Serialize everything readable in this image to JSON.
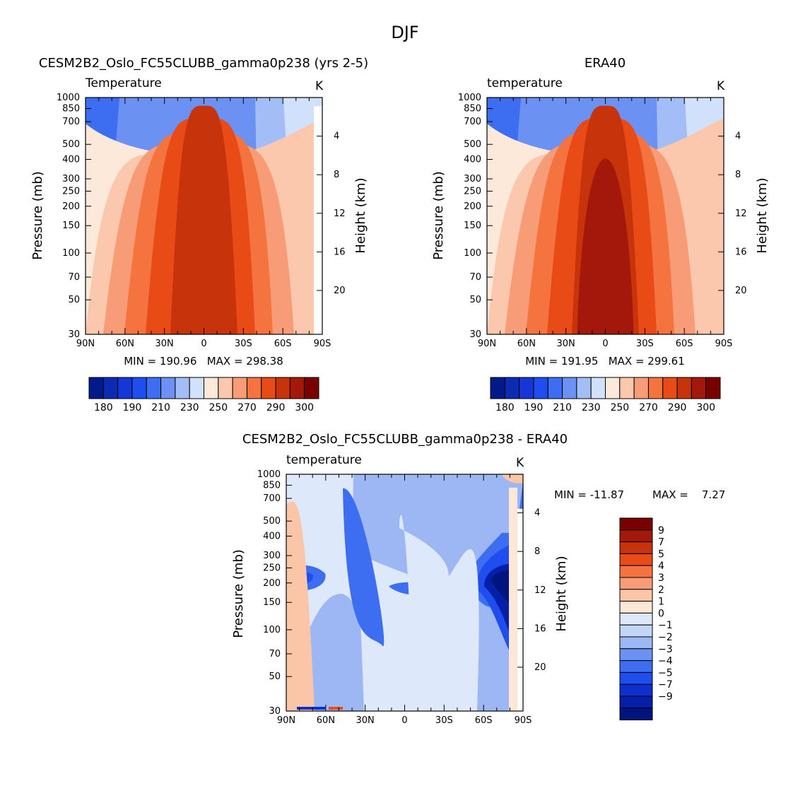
{
  "title": "DJF",
  "colors": {
    "abs_palette": [
      "#001a8c",
      "#0a2bb2",
      "#1437d6",
      "#1f4ef0",
      "#3d6df0",
      "#6b92f2",
      "#a3bdf6",
      "#d1e1fb",
      "#fde9da",
      "#fbc7ad",
      "#f89c78",
      "#f5733f",
      "#e84b16",
      "#c7330b",
      "#a3180a",
      "#7a0000"
    ],
    "diff_palette": [
      "#001480",
      "#061fa8",
      "#0f30d1",
      "#1f4ef0",
      "#3d6df0",
      "#6b92f2",
      "#9db7f5",
      "#c4d6f8",
      "#dde9fb",
      "#fde8d8",
      "#fbc5a8",
      "#f89c78",
      "#f5733f",
      "#e84b16",
      "#c7330b",
      "#a3180a",
      "#7a0000"
    ]
  },
  "chart_data": [
    {
      "id": "model",
      "type": "heatmap",
      "title": "CESM2B2_Oslo_FC55CLUBB_gamma0p238 (yrs 2-5)",
      "variable_label": "Temperature",
      "units": "K",
      "xlabel": "",
      "ylabel": "Pressure (mb)",
      "ylabel_right": "Height (km)",
      "x_ticks": [
        "90N",
        "60N",
        "30N",
        "0",
        "30S",
        "60S",
        "90S"
      ],
      "y_ticks": [
        30,
        50,
        70,
        100,
        150,
        200,
        250,
        300,
        400,
        500,
        700,
        850,
        1000
      ],
      "height_ticks": [
        4,
        8,
        12,
        16,
        20
      ],
      "stats": "MIN = 190.96   MAX = 298.38",
      "levels": [
        180,
        185,
        190,
        200,
        210,
        220,
        230,
        240,
        250,
        260,
        270,
        280,
        290,
        295,
        300
      ],
      "level_labels": [
        "180",
        "190",
        "210",
        "230",
        "250",
        "270",
        "290",
        "300"
      ]
    },
    {
      "id": "obs",
      "type": "heatmap",
      "title": "ERA40",
      "variable_label": "temperature",
      "units": "K",
      "xlabel": "",
      "ylabel": "Pressure (mb)",
      "ylabel_right": "Height (km)",
      "x_ticks": [
        "90N",
        "60N",
        "30N",
        "0",
        "30S",
        "60S",
        "90S"
      ],
      "y_ticks": [
        30,
        50,
        70,
        100,
        150,
        200,
        250,
        300,
        400,
        500,
        700,
        850,
        1000
      ],
      "height_ticks": [
        4,
        8,
        12,
        16,
        20
      ],
      "stats": "MIN = 191.95   MAX = 299.61",
      "levels": [
        180,
        185,
        190,
        200,
        210,
        220,
        230,
        240,
        250,
        260,
        270,
        280,
        290,
        295,
        300
      ],
      "level_labels": [
        "180",
        "190",
        "210",
        "230",
        "250",
        "270",
        "290",
        "300"
      ]
    },
    {
      "id": "diff",
      "type": "heatmap",
      "title": "CESM2B2_Oslo_FC55CLUBB_gamma0p238 - ERA40",
      "variable_label": "temperature",
      "units": "K",
      "xlabel": "",
      "ylabel": "Pressure (mb)",
      "ylabel_right": "Height (km)",
      "x_ticks": [
        "90N",
        "60N",
        "30N",
        "0",
        "30S",
        "60S",
        "90S"
      ],
      "y_ticks": [
        30,
        50,
        70,
        100,
        150,
        200,
        250,
        300,
        400,
        500,
        700,
        850,
        1000
      ],
      "height_ticks": [
        4,
        8,
        12,
        16,
        20
      ],
      "stats_min": "MIN = -11.87",
      "stats_max": "MAX =    7.27",
      "levels": [
        -9,
        -7,
        -5,
        -4,
        -3,
        -2,
        -1,
        0,
        1,
        2,
        3,
        4,
        5,
        7,
        9
      ],
      "level_labels": [
        "9",
        "7",
        "5",
        "4",
        "3",
        "2",
        "1",
        "0",
        "-1",
        "-2",
        "-3",
        "-4",
        "-5",
        "-7",
        "-9"
      ]
    }
  ]
}
